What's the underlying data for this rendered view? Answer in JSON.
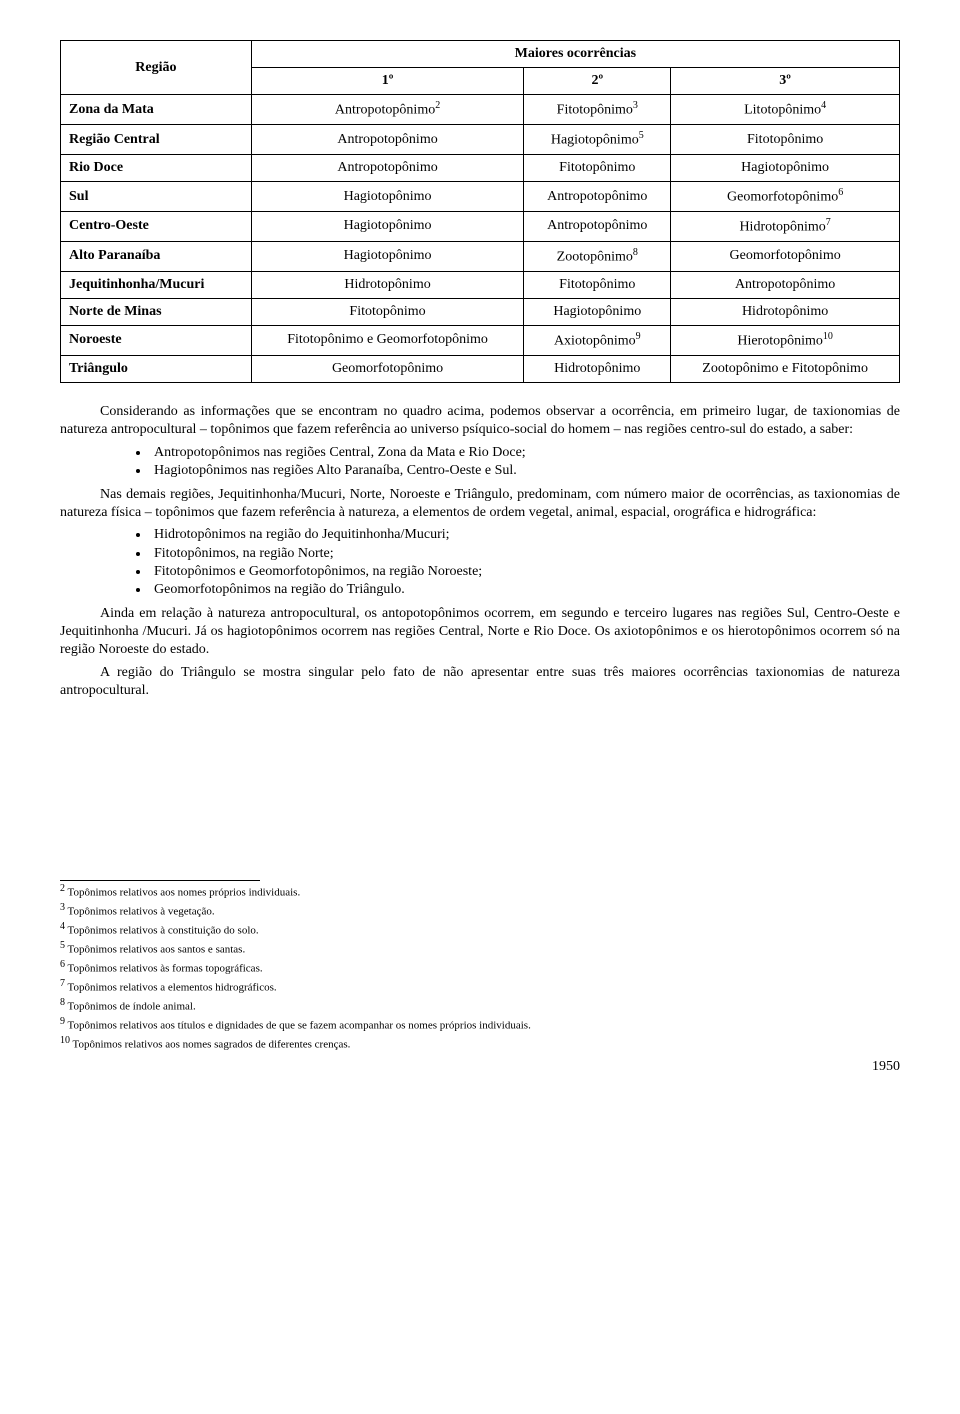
{
  "table": {
    "header_region": "Região",
    "header_main": "Maiores ocorrências",
    "subheaders": [
      "1º",
      "2º",
      "3º"
    ],
    "rows": [
      {
        "region": "Zona da Mata",
        "c1": "Antropotopônimo",
        "c1_sup": "2",
        "c2": "Fitotopônimo",
        "c2_sup": "3",
        "c3": "Litotopônimo",
        "c3_sup": "4"
      },
      {
        "region": "Região Central",
        "c1": "Antropotopônimo",
        "c2": "Hagiotopônimo",
        "c2_sup": "5",
        "c3": "Fitotopônimo"
      },
      {
        "region": "Rio Doce",
        "c1": "Antropotopônimo",
        "c2": "Fitotopônimo",
        "c3": "Hagiotopônimo"
      },
      {
        "region": "Sul",
        "c1": "Hagiotopônimo",
        "c2": "Antropotopônimo",
        "c3": "Geomorfotopônimo",
        "c3_sup": "6"
      },
      {
        "region": "Centro-Oeste",
        "c1": "Hagiotopônimo",
        "c2": "Antropotopônimo",
        "c3": "Hidrotopônimo",
        "c3_sup": "7"
      },
      {
        "region": "Alto Paranaíba",
        "c1": "Hagiotopônimo",
        "c2": "Zootopônimo",
        "c2_sup": "8",
        "c3": "Geomorfotopônimo"
      },
      {
        "region": "Jequitinhonha/Mucuri",
        "c1": "Hidrotopônimo",
        "c2": "Fitotopônimo",
        "c3": "Antropotopônimo"
      },
      {
        "region": "Norte de Minas",
        "c1": "Fitotopônimo",
        "c2": "Hagiotopônimo",
        "c3": "Hidrotopônimo"
      },
      {
        "region": "Noroeste",
        "c1": "Fitotopônimo e Geomorfotopônimo",
        "c2": "Axiotopônimo",
        "c2_sup": "9",
        "c3": "Hierotopônimo",
        "c3_sup": "10"
      },
      {
        "region": "Triângulo",
        "c1": "Geomorfotopônimo",
        "c2": "Hidrotopônimo",
        "c3": "Zootopônimo e Fitotopônimo"
      }
    ]
  },
  "body": {
    "p1": "Considerando as informações que se encontram no quadro acima, podemos observar a ocorrência, em primeiro lugar, de taxionomias de natureza antropocultural – topônimos que fazem referência ao universo psíquico-social do homem – nas regiões centro-sul do estado, a saber:",
    "list1": [
      "Antropotopônimos nas regiões Central, Zona da Mata e Rio Doce;",
      "Hagiotopônimos nas regiões Alto Paranaíba, Centro-Oeste e Sul."
    ],
    "p2": "Nas demais regiões, Jequitinhonha/Mucuri, Norte, Noroeste e Triângulo, predominam, com número maior de ocorrências, as taxionomias de natureza física – topônimos que fazem referência à natureza, a elementos de ordem vegetal, animal, espacial, orográfica e hidrográfica:",
    "list2": [
      "Hidrotopônimos na região do Jequitinhonha/Mucuri;",
      "Fitotopônimos, na região Norte;",
      "Fitotopônimos e Geomorfotopônimos, na região Noroeste;",
      "Geomorfotopônimos na região do Triângulo."
    ],
    "p3": "Ainda em relação à natureza antropocultural, os antopotopônimos ocorrem, em segundo e terceiro lugares nas regiões Sul, Centro-Oeste e Jequitinhonha /Mucuri. Já os hagiotopônimos ocorrem nas regiões Central, Norte e Rio Doce. Os axiotopônimos e os hierotopônimos ocorrem só na região Noroeste do estado.",
    "p4": "A região do Triângulo se mostra singular pelo fato de não apresentar entre suas três maiores ocorrências taxionomias de natureza antropocultural."
  },
  "footnotes": [
    {
      "n": "2",
      "t": " Topônimos relativos aos nomes próprios individuais."
    },
    {
      "n": "3",
      "t": " Topônimos relativos à vegetação."
    },
    {
      "n": "4",
      "t": " Topônimos relativos à constituição do solo."
    },
    {
      "n": "5",
      "t": " Topônimos relativos aos santos e santas."
    },
    {
      "n": "6",
      "t": " Topônimos relativos às formas topográficas."
    },
    {
      "n": "7",
      "t": " Topônimos relativos a elementos hidrográficos."
    },
    {
      "n": "8",
      "t": " Topônimos de índole animal."
    },
    {
      "n": "9",
      "t": " Topônimos relativos aos títulos e dignidades de que se fazem acompanhar os nomes próprios individuais."
    },
    {
      "n": "10",
      "t": " Topônimos relativos aos nomes sagrados de diferentes crenças."
    }
  ],
  "page_number": "1950"
}
